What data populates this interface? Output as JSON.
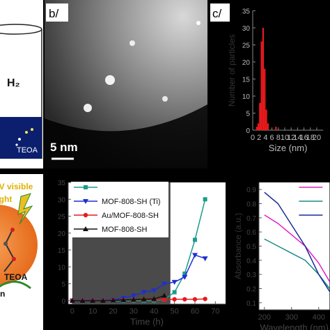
{
  "panel_a": {
    "gas_label": "H₂",
    "reagent_label": "TEOA"
  },
  "panel_b": {
    "label": "b/",
    "scale_bar": "5 nm"
  },
  "panel_c": {
    "label": "c/"
  },
  "panel_d": {
    "light_label": "UV visible",
    "light_label_2": "light",
    "reagent_label": "TEOA",
    "caption_fragment": "n"
  },
  "chart_data": [
    {
      "type": "histogram",
      "x_label": "Size (nm)",
      "y_label": "Number of particles",
      "bins": [
        1,
        1.5,
        2,
        2.5,
        3,
        3.5,
        4,
        4.5,
        5,
        5.5,
        6,
        6.5,
        7,
        7.5,
        8
      ],
      "values": [
        1,
        2,
        8,
        26,
        30,
        18,
        6,
        2,
        0,
        0,
        0,
        0,
        1,
        0
      ],
      "color": "#e8191c",
      "xlim": [
        0,
        22
      ],
      "xticks": [
        0,
        2,
        4,
        6,
        8,
        10,
        12,
        14,
        16,
        18,
        20
      ],
      "ylim": [
        0,
        35
      ],
      "yticks": [
        0,
        5,
        10,
        15,
        20,
        25,
        30,
        35
      ]
    },
    {
      "type": "line",
      "x_label": "Time (h)",
      "x": [
        0,
        5,
        10,
        15,
        20,
        25,
        30,
        35,
        40,
        45,
        50,
        55,
        60,
        65
      ],
      "shaded_range": [
        0,
        48
      ],
      "series": [
        {
          "color": "#1a9c8c",
          "marker": "square",
          "values": [
            0,
            0,
            0,
            0,
            0,
            0,
            0,
            0,
            0,
            0.3,
            2.5,
            8,
            18,
            30
          ]
        },
        {
          "name": "MOF-808-SH (Ti)",
          "color": "#1f2fd0",
          "marker": "triangle-down",
          "values": [
            0,
            0,
            0,
            0,
            0.2,
            0.8,
            1.5,
            2.5,
            3,
            5,
            5.5,
            7,
            13.5,
            12.5
          ]
        },
        {
          "name": "Au/MOF-808-SH",
          "color": "#e8191c",
          "marker": "circle",
          "values": [
            0,
            0,
            0,
            0,
            0.1,
            0.2,
            0.2,
            0.3,
            0.3,
            0.3,
            0.4,
            0.4,
            0.4,
            0.5
          ]
        },
        {
          "name": "MOF-808-SH",
          "color": "#111111",
          "marker": "triangle",
          "values": [
            0,
            0,
            0,
            0,
            0.1,
            0.2,
            0.3,
            0.4,
            0.5,
            1.5,
            null,
            null,
            null,
            null
          ]
        }
      ],
      "legend": "upper left",
      "xlim": [
        -2,
        75
      ],
      "xticks": [
        0,
        10,
        20,
        30,
        40,
        50,
        60,
        70
      ],
      "ylim": [
        -1,
        35
      ],
      "yticks": [
        0,
        5,
        10,
        15,
        20,
        25,
        30,
        35
      ]
    },
    {
      "type": "line",
      "x_label": "Wavelength (nm)",
      "y_label": "Absorbance (a.u.)",
      "x": [
        200,
        250,
        300,
        350,
        400,
        440
      ],
      "series": [
        {
          "color": "#e020c8",
          "values": [
            0.72,
            0.66,
            0.58,
            0.5,
            0.38,
            0.25
          ]
        },
        {
          "color": "#1a8c84",
          "values": [
            0.55,
            0.5,
            0.45,
            0.4,
            0.3,
            0.2
          ]
        },
        {
          "color": "#1a2a9a",
          "values": [
            0.88,
            0.8,
            0.65,
            0.5,
            0.3,
            0.18
          ]
        }
      ],
      "legend": "upper right",
      "xlim": [
        180,
        440
      ],
      "xticks": [
        200,
        300,
        400
      ],
      "ylim": [
        0.05,
        0.95
      ],
      "yticks": [
        0.1,
        0.2,
        0.3,
        0.4,
        0.5,
        0.6,
        0.7,
        0.8,
        0.9
      ]
    }
  ]
}
